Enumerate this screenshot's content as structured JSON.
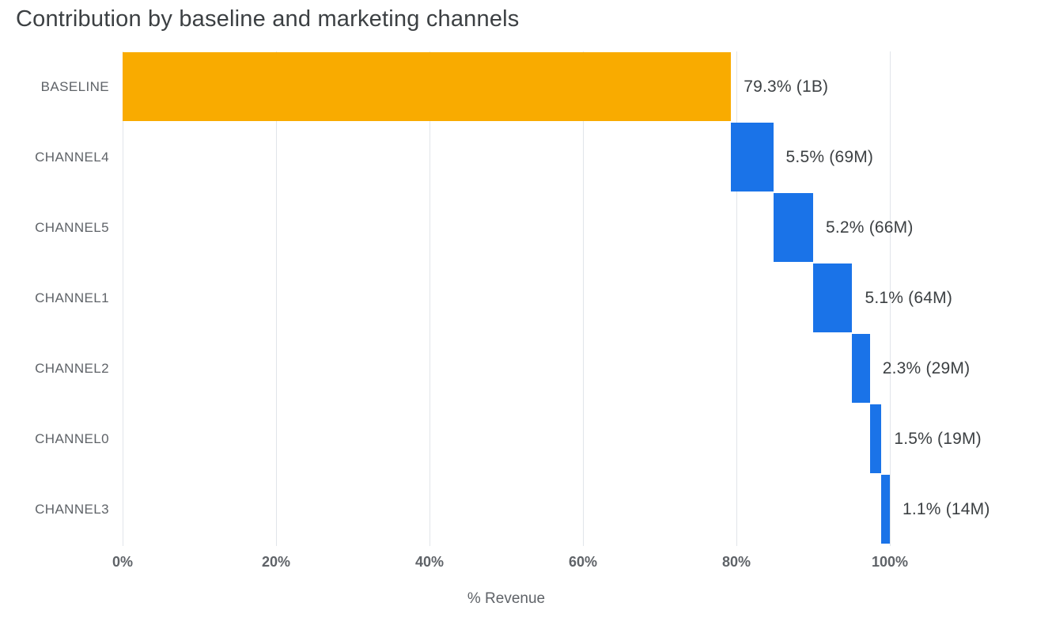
{
  "title": "Contribution by baseline and marketing channels",
  "chart_data": {
    "type": "bar",
    "variant": "horizontal-waterfall",
    "title": "Contribution by baseline and marketing channels",
    "xlabel": "% Revenue",
    "categories": [
      "BASELINE",
      "CHANNEL4",
      "CHANNEL5",
      "CHANNEL1",
      "CHANNEL2",
      "CHANNEL0",
      "CHANNEL3"
    ],
    "values": [
      79.3,
      5.5,
      5.2,
      5.1,
      2.3,
      1.5,
      1.1
    ],
    "cumulative_start_percent": [
      0,
      79.3,
      84.8,
      90.0,
      95.1,
      97.4,
      98.9
    ],
    "data_labels": [
      "79.3% (1B)",
      "5.5% (69M)",
      "5.2% (66M)",
      "5.1% (64M)",
      "2.3% (29M)",
      "1.5% (19M)",
      "1.1% (14M)"
    ],
    "bar_colors": [
      "#F9AB00",
      "#1A73E8",
      "#1A73E8",
      "#1A73E8",
      "#1A73E8",
      "#1A73E8",
      "#1A73E8"
    ],
    "x_tick_labels": [
      "0%",
      "20%",
      "40%",
      "60%",
      "80%",
      "100%"
    ],
    "x_tick_values": [
      0,
      20,
      40,
      60,
      80,
      100
    ],
    "xlim": [
      0,
      121
    ],
    "grid": true,
    "legend": false
  },
  "colors": {
    "baseline_bar": "#F9AB00",
    "channel_bar": "#1A73E8",
    "title_text": "#3C4043",
    "value_label_text": "#3C4043",
    "axis_text": "#5F6368",
    "gridline": "#E1E5EA",
    "background": "#FFFFFF"
  }
}
